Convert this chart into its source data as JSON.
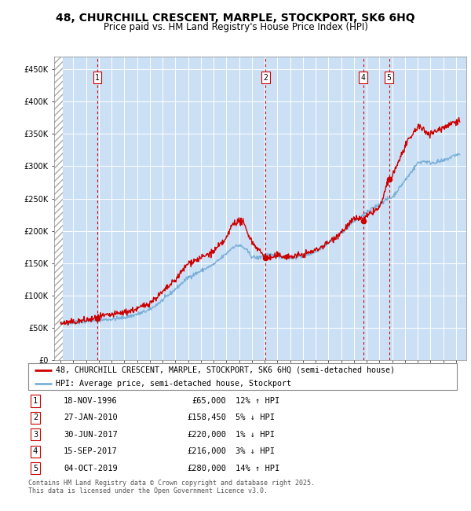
{
  "title": "48, CHURCHILL CRESCENT, MARPLE, STOCKPORT, SK6 6HQ",
  "subtitle": "Price paid vs. HM Land Registry's House Price Index (HPI)",
  "title_fontsize": 10,
  "subtitle_fontsize": 8.5,
  "bg_color": "#cce0f5",
  "grid_color": "#ffffff",
  "ylim": [
    0,
    470000
  ],
  "yticks": [
    0,
    50000,
    100000,
    150000,
    200000,
    250000,
    300000,
    350000,
    400000,
    450000
  ],
  "transactions": [
    {
      "num": 1,
      "date": "18-NOV-1996",
      "price": 65000,
      "hpi_rel": "12% ↑ HPI",
      "year": 1996.88,
      "show_label": true
    },
    {
      "num": 2,
      "date": "27-JAN-2010",
      "price": 158450,
      "hpi_rel": "5% ↓ HPI",
      "year": 2010.07,
      "show_label": true
    },
    {
      "num": 3,
      "date": "30-JUN-2017",
      "price": 220000,
      "hpi_rel": "1% ↓ HPI",
      "year": 2017.5,
      "show_label": false
    },
    {
      "num": 4,
      "date": "15-SEP-2017",
      "price": 216000,
      "hpi_rel": "3% ↓ HPI",
      "year": 2017.71,
      "show_label": true
    },
    {
      "num": 5,
      "date": "04-OCT-2019",
      "price": 280000,
      "hpi_rel": "14% ↑ HPI",
      "year": 2019.75,
      "show_label": true
    }
  ],
  "vline_transactions": [
    1,
    2,
    4,
    5
  ],
  "legend_entries": [
    "48, CHURCHILL CRESCENT, MARPLE, STOCKPORT, SK6 6HQ (semi-detached house)",
    "HPI: Average price, semi-detached house, Stockport"
  ],
  "footer": "Contains HM Land Registry data © Crown copyright and database right 2025.\nThis data is licensed under the Open Government Licence v3.0.",
  "house_color": "#cc0000",
  "hpi_color": "#7ab0d8",
  "vline_color": "#cc0000",
  "marker_color": "#cc0000",
  "xstart": 1994,
  "xend": 2025
}
